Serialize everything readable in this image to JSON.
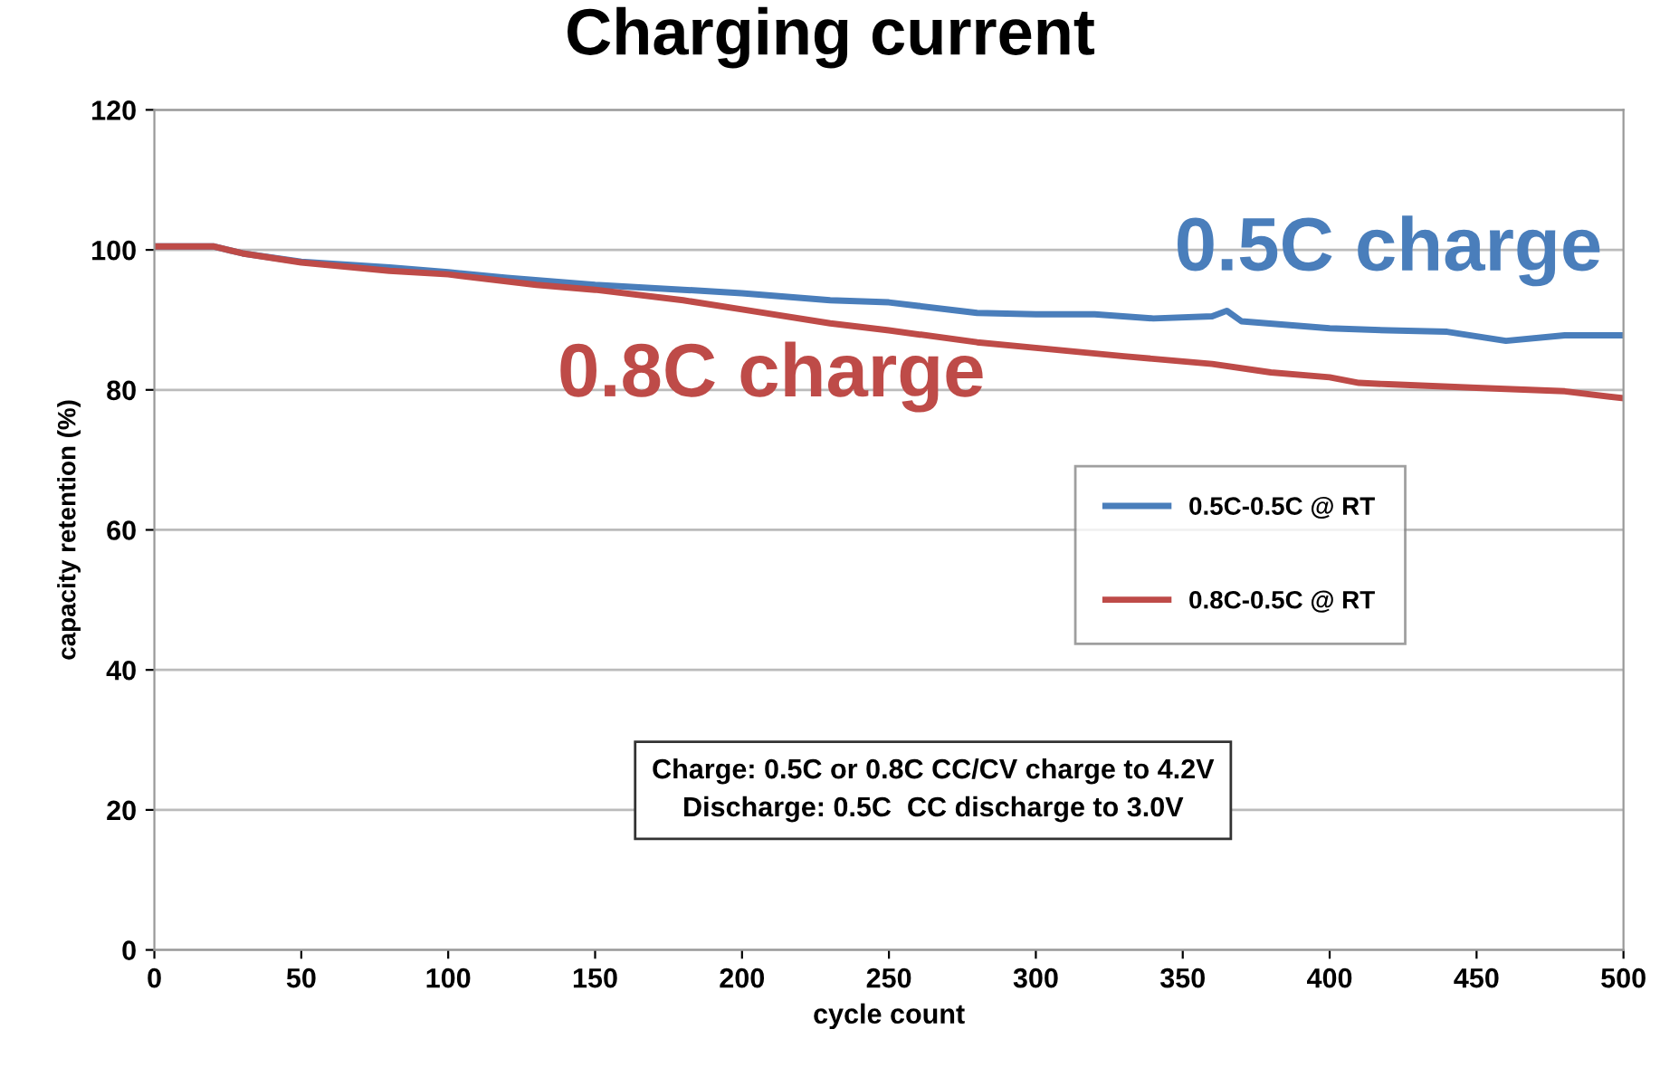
{
  "chart_data": {
    "type": "line",
    "title": "Charging current",
    "xlabel": "cycle count",
    "ylabel": "capacity retention (%)",
    "xlim": [
      0,
      500
    ],
    "ylim": [
      0,
      120
    ],
    "xticks": [
      0,
      50,
      100,
      150,
      200,
      250,
      300,
      350,
      400,
      450,
      500
    ],
    "yticks": [
      0,
      20,
      40,
      60,
      80,
      100,
      120
    ],
    "grid": "y",
    "legend": "right",
    "marker": "none",
    "line_style": "solid",
    "series": [
      {
        "name": "0.5C-0.5C @ RT",
        "color": "#4a7ebb",
        "x": [
          0,
          20,
          30,
          50,
          80,
          100,
          120,
          150,
          180,
          200,
          230,
          250,
          260,
          280,
          300,
          320,
          340,
          360,
          365,
          370,
          400,
          420,
          440,
          460,
          480,
          500
        ],
        "values": [
          100.5,
          100.5,
          99.5,
          98.3,
          97.5,
          96.8,
          96.0,
          95.0,
          94.3,
          93.8,
          92.8,
          92.5,
          92.0,
          91.0,
          90.8,
          90.8,
          90.2,
          90.5,
          91.3,
          89.8,
          88.8,
          88.5,
          88.3,
          87.0,
          87.8,
          87.8
        ]
      },
      {
        "name": "0.8C-0.5C @ RT",
        "color": "#be4b48",
        "x": [
          0,
          20,
          30,
          50,
          80,
          100,
          130,
          150,
          180,
          200,
          230,
          250,
          280,
          300,
          330,
          360,
          380,
          400,
          410,
          420,
          450,
          480,
          500
        ],
        "values": [
          100.5,
          100.5,
          99.5,
          98.2,
          97.0,
          96.5,
          95.0,
          94.3,
          92.8,
          91.5,
          89.5,
          88.5,
          86.8,
          86.0,
          84.8,
          83.7,
          82.5,
          81.8,
          81.0,
          80.8,
          80.3,
          79.8,
          78.8
        ]
      }
    ],
    "annotations": [
      "0.5C charge",
      "0.8C charge",
      "Charge: 0.5C or 0.8C CC/CV charge to 4.2V\nDischarge: 0.5C  CC discharge to 3.0V"
    ]
  }
}
